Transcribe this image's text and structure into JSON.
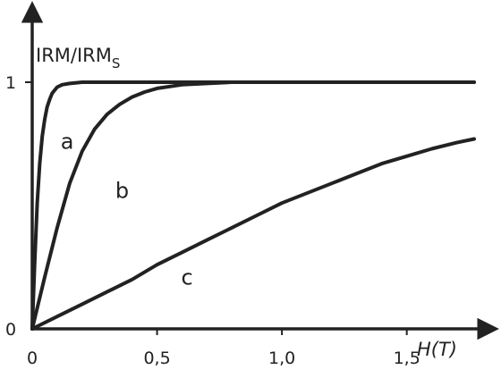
{
  "chart_data": {
    "type": "line",
    "title": "",
    "ylabel": "IRM/IRM",
    "ylabel_sub": "S",
    "xlabel": "H(T)",
    "xlim": [
      0,
      1.82
    ],
    "ylim": [
      0,
      1.2
    ],
    "x_ticks": [
      {
        "value": 0,
        "label": "0"
      },
      {
        "value": 0.5,
        "label": "0,5"
      },
      {
        "value": 1.0,
        "label": "1,0"
      },
      {
        "value": 1.5,
        "label": "1,5"
      }
    ],
    "y_ticks": [
      {
        "value": 0,
        "label": "0"
      },
      {
        "value": 1,
        "label": "1"
      }
    ],
    "grid": false,
    "line_color": "#222222",
    "series": [
      {
        "name": "a",
        "label_at": [
          0.14,
          0.73
        ],
        "x": [
          0,
          0.01,
          0.02,
          0.03,
          0.04,
          0.05,
          0.06,
          0.07,
          0.08,
          0.1,
          0.12,
          0.15,
          0.2,
          0.3,
          0.5,
          1.0,
          1.5,
          1.77
        ],
        "y": [
          0,
          0.27,
          0.51,
          0.67,
          0.78,
          0.85,
          0.9,
          0.93,
          0.955,
          0.98,
          0.99,
          0.995,
          1.0,
          1.0,
          1.0,
          1.0,
          1.0,
          1.0
        ]
      },
      {
        "name": "b",
        "label_at": [
          0.36,
          0.53
        ],
        "x": [
          0,
          0.05,
          0.1,
          0.15,
          0.2,
          0.25,
          0.3,
          0.35,
          0.4,
          0.45,
          0.5,
          0.6,
          0.7,
          0.8,
          1.0,
          1.2,
          1.5,
          1.77
        ],
        "y": [
          0,
          0.21,
          0.41,
          0.59,
          0.72,
          0.81,
          0.87,
          0.91,
          0.94,
          0.96,
          0.975,
          0.99,
          0.995,
          1.0,
          1.0,
          1.0,
          1.0,
          1.0
        ]
      },
      {
        "name": "c",
        "label_at": [
          0.62,
          0.18
        ],
        "x": [
          0,
          0.1,
          0.2,
          0.3,
          0.4,
          0.5,
          0.6,
          0.7,
          0.8,
          0.9,
          1.0,
          1.1,
          1.2,
          1.3,
          1.4,
          1.5,
          1.6,
          1.7,
          1.77
        ],
        "y": [
          0,
          0.05,
          0.1,
          0.15,
          0.2,
          0.26,
          0.31,
          0.36,
          0.41,
          0.46,
          0.51,
          0.55,
          0.59,
          0.63,
          0.67,
          0.7,
          0.73,
          0.755,
          0.77
        ]
      }
    ]
  }
}
